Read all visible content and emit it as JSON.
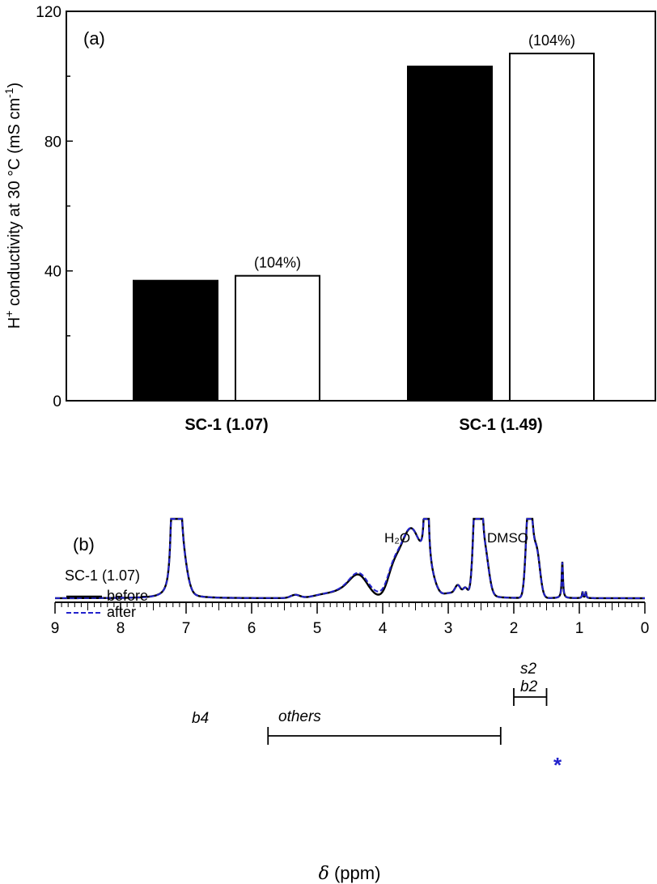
{
  "chart_data": [
    {
      "type": "bar",
      "panel_label": "(a)",
      "ylabel_main": "H",
      "ylabel_sup": "+",
      "ylabel_rest": " conductivity at 30 °C (mS cm",
      "ylabel_sup2": "-1",
      "ylabel_end": ")",
      "ylim": [
        0,
        120
      ],
      "yticks": [
        0,
        40,
        80,
        120
      ],
      "categories": [
        "SC-1 (1.07)",
        "SC-1 (1.49)"
      ],
      "series": [
        {
          "values": [
            37,
            103
          ],
          "fill": "#000000"
        },
        {
          "values": [
            38.5,
            107
          ],
          "fill": "#ffffff"
        }
      ],
      "annotations": [
        "(104%)",
        "(104%)"
      ]
    },
    {
      "type": "line",
      "panel_label": "(b)",
      "xlabel_sym": "δ",
      "xlabel_unit": " (ppm)",
      "xlim": [
        9,
        0
      ],
      "xticks": [
        9,
        8,
        7,
        6,
        5,
        4,
        3,
        2,
        1,
        0
      ],
      "legend_title": "SC-1 (1.07)",
      "series": [
        {
          "name": "before",
          "color": "#000000",
          "style": "solid"
        },
        {
          "name": "after",
          "color": "#2222cc",
          "style": "dashed"
        }
      ],
      "peaks": {
        "h2o": "H₂O",
        "dmso": "DMSO",
        "b4": "b4",
        "others": "others",
        "s2": "s2",
        "b2": "b2",
        "star": "*"
      },
      "ranges": {
        "others": [
          5.75,
          2.2
        ],
        "s2b2": [
          2.0,
          1.5
        ]
      }
    }
  ]
}
